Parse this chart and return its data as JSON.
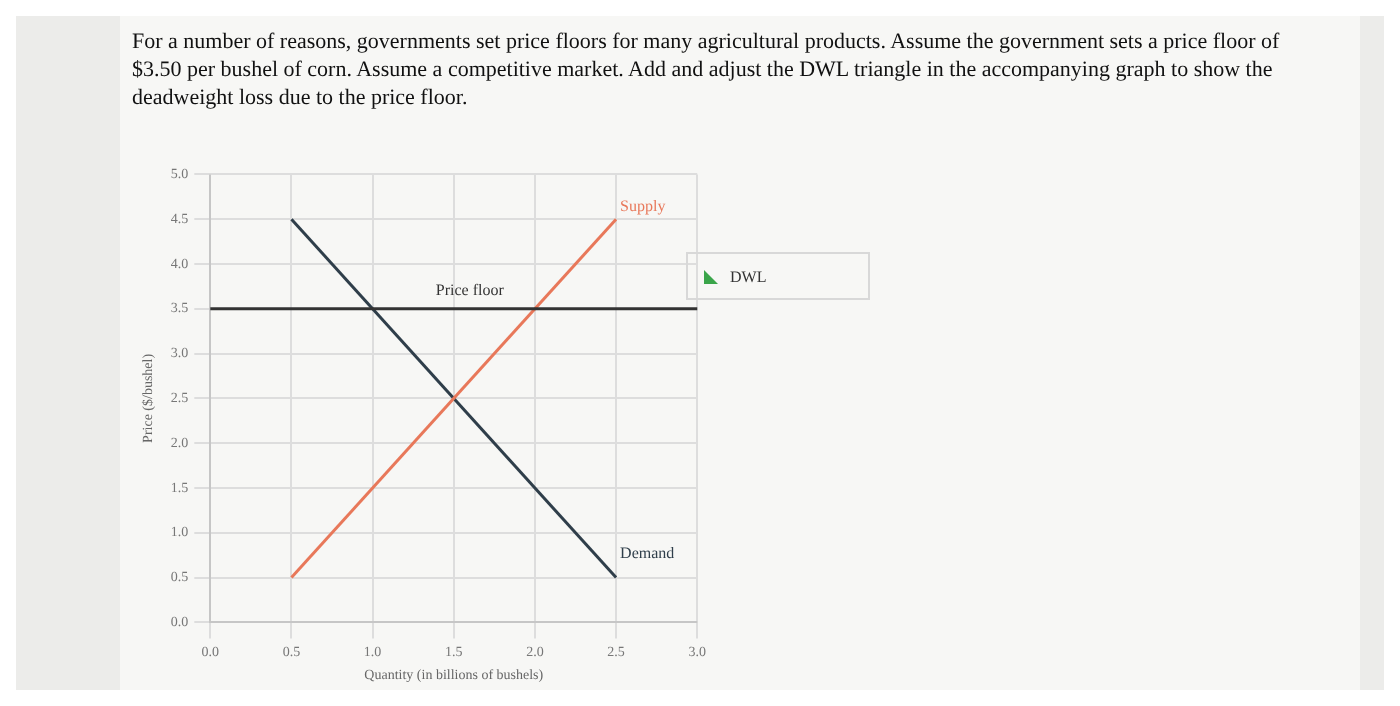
{
  "chart_data": {
    "type": "line",
    "title": "For a number of reasons, governments set price floors for many agricultural products. Assume the government sets a price floor of $3.50 per bushel of corn. Assume a competitive market. Add and adjust the DWL triangle in the accompanying graph to show the deadweight loss due to the price floor.",
    "xlabel": "Quantity (in billions of bushels)",
    "ylabel": "Price ($/bushel)",
    "x": [
      0.5,
      2.5
    ],
    "series": [
      {
        "name": "Supply",
        "color": "#e8785a",
        "values": [
          0.5,
          4.5
        ]
      },
      {
        "name": "Demand",
        "color": "#2f3e4a",
        "values": [
          4.5,
          0.5
        ]
      }
    ],
    "ref_lines": [
      {
        "axis": "y",
        "value": 3.5,
        "label": "Price floor",
        "color": "#333333"
      }
    ],
    "annotations": [
      "DWL"
    ],
    "xlim": [
      0,
      3
    ],
    "ylim": [
      0,
      5
    ],
    "xticks": [
      {
        "value": 0,
        "label": "0.0"
      },
      {
        "value": 0.5,
        "label": "0.5"
      },
      {
        "value": 1,
        "label": "1.0"
      },
      {
        "value": 1.5,
        "label": "1.5"
      },
      {
        "value": 2,
        "label": "2.0"
      },
      {
        "value": 2.5,
        "label": "2.5"
      },
      {
        "value": 3,
        "label": "3.0"
      }
    ],
    "yticks": [
      {
        "value": 0,
        "label": "0.0"
      },
      {
        "value": 0.5,
        "label": "0.5"
      },
      {
        "value": 1,
        "label": "1.0"
      },
      {
        "value": 1.5,
        "label": "1.5"
      },
      {
        "value": 2,
        "label": "2.0"
      },
      {
        "value": 2.5,
        "label": "2.5"
      },
      {
        "value": 3,
        "label": "3.0"
      },
      {
        "value": 3.5,
        "label": "3.5"
      },
      {
        "value": 4,
        "label": "4.0"
      },
      {
        "value": 4.5,
        "label": "4.5"
      },
      {
        "value": 5,
        "label": "5.0"
      }
    ],
    "grid": true,
    "legend": false,
    "marker": "none",
    "line_style": "solid"
  }
}
